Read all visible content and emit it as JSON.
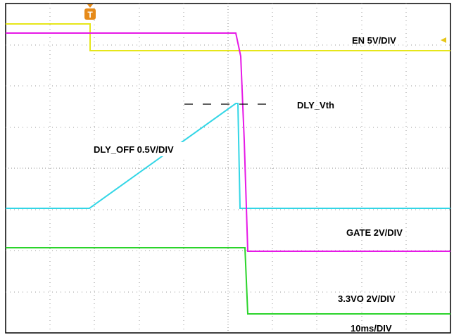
{
  "labels": {
    "en": "EN 5V/DIV",
    "vth": "DLY_Vth",
    "dly_off": "DLY_OFF 0.5V/DIV",
    "gate": "GATE 2V/DIV",
    "vo": "3.3VO 2V/DIV",
    "timebase": "10ms/DIV"
  },
  "trigger": "T"
}
